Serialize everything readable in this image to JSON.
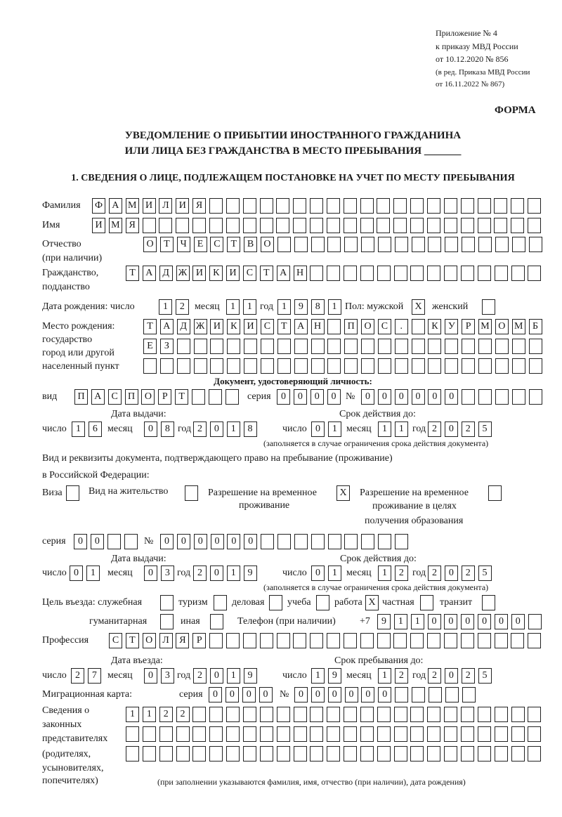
{
  "header": {
    "line1": "Приложение № 4",
    "line2": "к приказу МВД России",
    "line3": "от 10.12.2020 № 856",
    "line4": "(в ред. Приказа МВД России",
    "line5": "от 16.11.2022 № 867)",
    "form_label": "ФОРМА",
    "title1": "УВЕДОМЛЕНИЕ О ПРИБЫТИИ ИНОСТРАННОГО ГРАЖДАНИНА",
    "title2": "ИЛИ ЛИЦА БЕЗ ГРАЖДАНСТВА В МЕСТО ПРЕБЫВАНИЯ _______",
    "section1": "1. СВЕДЕНИЯ О ЛИЦЕ, ПОДЛЕЖАЩЕМ ПОСТАНОВКЕ НА УЧЕТ ПО МЕСТУ ПРЕБЫВАНИЯ"
  },
  "person": {
    "surname_label": "Фамилия",
    "surname": [
      "Ф",
      "А",
      "М",
      "И",
      "Л",
      "И",
      "Я",
      "",
      "",
      "",
      "",
      "",
      "",
      "",
      "",
      "",
      "",
      "",
      "",
      "",
      "",
      "",
      "",
      "",
      "",
      "",
      ""
    ],
    "name_label": "Имя",
    "name": [
      "И",
      "М",
      "Я",
      "",
      "",
      "",
      "",
      "",
      "",
      "",
      "",
      "",
      "",
      "",
      "",
      "",
      "",
      "",
      "",
      "",
      "",
      "",
      "",
      "",
      "",
      "",
      ""
    ],
    "patronymic_label1": "Отчество",
    "patronymic_label2": "(при наличии)",
    "patronymic": [
      "О",
      "Т",
      "Ч",
      "Е",
      "С",
      "Т",
      "В",
      "О",
      "",
      "",
      "",
      "",
      "",
      "",
      "",
      "",
      "",
      "",
      "",
      "",
      "",
      "",
      "",
      ""
    ],
    "citizenship_label1": "Гражданство,",
    "citizenship_label2": "подданство",
    "citizenship": [
      "Т",
      "А",
      "Д",
      "Ж",
      "И",
      "К",
      "И",
      "С",
      "Т",
      "А",
      "Н",
      "",
      "",
      "",
      "",
      "",
      "",
      "",
      "",
      "",
      "",
      "",
      "",
      "",
      ""
    ],
    "birth_label": "Дата рождения:  число",
    "birth_day": [
      "1",
      "2"
    ],
    "month_label": "месяц",
    "birth_month": [
      "1",
      "1"
    ],
    "year_label": "год",
    "birth_year": [
      "1",
      "9",
      "8",
      "1"
    ],
    "sex_male_label": "Пол: мужской",
    "sex_male": [
      "X"
    ],
    "sex_female_label": "женский",
    "sex_female": [
      ""
    ],
    "birthplace_label1": "Место рождения:",
    "birthplace_label2": "государство",
    "birthplace_label3": "город или другой",
    "birthplace_label4": "населенный пункт",
    "birthplace_row1": [
      "Т",
      "А",
      "Д",
      "Ж",
      "И",
      "К",
      "И",
      "С",
      "Т",
      "А",
      "Н",
      "",
      "П",
      "О",
      "С",
      ".",
      "",
      "К",
      "У",
      "Р",
      "М",
      "О",
      "М",
      "Б"
    ],
    "birthplace_row2": [
      "Е",
      "З",
      "",
      "",
      "",
      "",
      "",
      "",
      "",
      "",
      "",
      "",
      "",
      "",
      "",
      "",
      "",
      "",
      "",
      "",
      "",
      "",
      "",
      ""
    ],
    "birthplace_row3": [
      "",
      "",
      "",
      "",
      "",
      "",
      "",
      "",
      "",
      "",
      "",
      "",
      "",
      "",
      "",
      "",
      "",
      "",
      "",
      "",
      "",
      "",
      "",
      ""
    ]
  },
  "id_doc": {
    "heading": "Документ, удостоверяющий личность:",
    "type_label": "вид",
    "type": [
      "П",
      "А",
      "С",
      "П",
      "О",
      "Р",
      "Т",
      "",
      "",
      ""
    ],
    "series_label": "серия",
    "series": [
      "0",
      "0",
      "0",
      "0"
    ],
    "number_label": "№",
    "number": [
      "0",
      "0",
      "0",
      "0",
      "0",
      "0",
      "",
      "",
      "",
      "",
      ""
    ],
    "issue_label": "Дата выдачи:",
    "valid_label": "Срок действия до:",
    "day_label": "число",
    "month_label": "месяц",
    "year_label": "год",
    "issue_day": [
      "1",
      "6"
    ],
    "issue_month": [
      "0",
      "8"
    ],
    "issue_year": [
      "2",
      "0",
      "1",
      "8"
    ],
    "valid_day": [
      "0",
      "1"
    ],
    "valid_month": [
      "1",
      "1"
    ],
    "valid_year": [
      "2",
      "0",
      "2",
      "5"
    ],
    "note": "(заполняется в случае ограничения срока действия документа)"
  },
  "stay_doc": {
    "intro1": "Вид и реквизиты документа, подтверждающего право на пребывание (проживание)",
    "intro2": "в Российской Федерации:",
    "visa_label": "Виза",
    "visa": [
      ""
    ],
    "residence_label": "Вид на жительство",
    "residence": [
      ""
    ],
    "trp_label1": "Разрешение на временное",
    "trp_label2": "проживание",
    "trp": [
      "X"
    ],
    "trp_edu_label1": "Разрешение на временное",
    "trp_edu_label2": "проживание в целях",
    "trp_edu_label3": "получения образования",
    "trp_edu": [
      ""
    ],
    "series_label": "серия",
    "series": [
      "0",
      "0",
      "",
      ""
    ],
    "number_label": "№",
    "number": [
      "0",
      "0",
      "0",
      "0",
      "0",
      "0",
      "",
      "",
      "",
      "",
      "",
      "",
      "",
      "",
      ""
    ],
    "issue_label": "Дата выдачи:",
    "valid_label": "Срок действия до:",
    "day_label": "число",
    "month_label": "месяц",
    "year_label": "год",
    "issue_day": [
      "0",
      "1"
    ],
    "issue_month": [
      "0",
      "3"
    ],
    "issue_year": [
      "2",
      "0",
      "1",
      "9"
    ],
    "valid_day": [
      "0",
      "1"
    ],
    "valid_month": [
      "1",
      "2"
    ],
    "valid_year": [
      "2",
      "0",
      "2",
      "5"
    ],
    "note": "(заполняется в случае ограничения срока действия документа)"
  },
  "purpose": {
    "label": "Цель въезда: служебная",
    "service": [
      ""
    ],
    "tourism_label": "туризм",
    "tourism": [
      ""
    ],
    "business_label": "деловая",
    "business": [
      ""
    ],
    "study_label": "учеба",
    "study": [
      ""
    ],
    "work_label": "работа",
    "work": [
      "X"
    ],
    "private_label": "частная",
    "private": [
      ""
    ],
    "transit_label": "транзит",
    "transit": [
      ""
    ],
    "humanitarian_label": "гуманитарная",
    "humanitarian": [
      ""
    ],
    "other_label": "иная",
    "other": [
      ""
    ]
  },
  "phone": {
    "label": "Телефон (при наличии)",
    "prefix": "+7",
    "digits": [
      "9",
      "1",
      "1",
      "0",
      "0",
      "0",
      "0",
      "0",
      "0",
      ""
    ]
  },
  "profession": {
    "label": "Профессия",
    "value": [
      "С",
      "Т",
      "О",
      "Л",
      "Я",
      "Р",
      "",
      "",
      "",
      "",
      "",
      "",
      "",
      "",
      "",
      "",
      "",
      "",
      "",
      "",
      "",
      "",
      "",
      "",
      "",
      ""
    ]
  },
  "entry": {
    "entry_label": "Дата въезда:",
    "stay_until_label": "Срок пребывания до:",
    "day_label": "число",
    "month_label": "месяц",
    "year_label": "год",
    "entry_day": [
      "2",
      "7"
    ],
    "entry_month": [
      "0",
      "3"
    ],
    "entry_year": [
      "2",
      "0",
      "1",
      "9"
    ],
    "until_day": [
      "1",
      "9"
    ],
    "until_month": [
      "1",
      "2"
    ],
    "until_year": [
      "2",
      "0",
      "2",
      "5"
    ]
  },
  "migration_card": {
    "label": "Миграционная карта:",
    "series_label": "серия",
    "series": [
      "0",
      "0",
      "0",
      "0"
    ],
    "number_label": "№",
    "number": [
      "0",
      "0",
      "0",
      "0",
      "0",
      "0",
      "",
      "",
      "",
      "",
      ""
    ]
  },
  "representatives": {
    "label1": "Сведения о",
    "label2": "законных",
    "label3": "представителях",
    "label4": "(родителях,",
    "label5": "усыновителях,",
    "label6": "попечителях)",
    "row1": [
      "1",
      "1",
      "2",
      "2",
      "",
      "",
      "",
      "",
      "",
      "",
      "",
      "",
      "",
      "",
      "",
      "",
      "",
      "",
      "",
      "",
      "",
      "",
      "",
      "",
      ""
    ],
    "row2": [
      "",
      "",
      "",
      "",
      "",
      "",
      "",
      "",
      "",
      "",
      "",
      "",
      "",
      "",
      "",
      "",
      "",
      "",
      "",
      "",
      "",
      "",
      "",
      "",
      ""
    ],
    "row3": [
      "",
      "",
      "",
      "",
      "",
      "",
      "",
      "",
      "",
      "",
      "",
      "",
      "",
      "",
      "",
      "",
      "",
      "",
      "",
      "",
      "",
      "",
      "",
      "",
      ""
    ],
    "note": "(при заполнении указываются фамилия, имя, отчество (при наличии), дата рождения)"
  }
}
